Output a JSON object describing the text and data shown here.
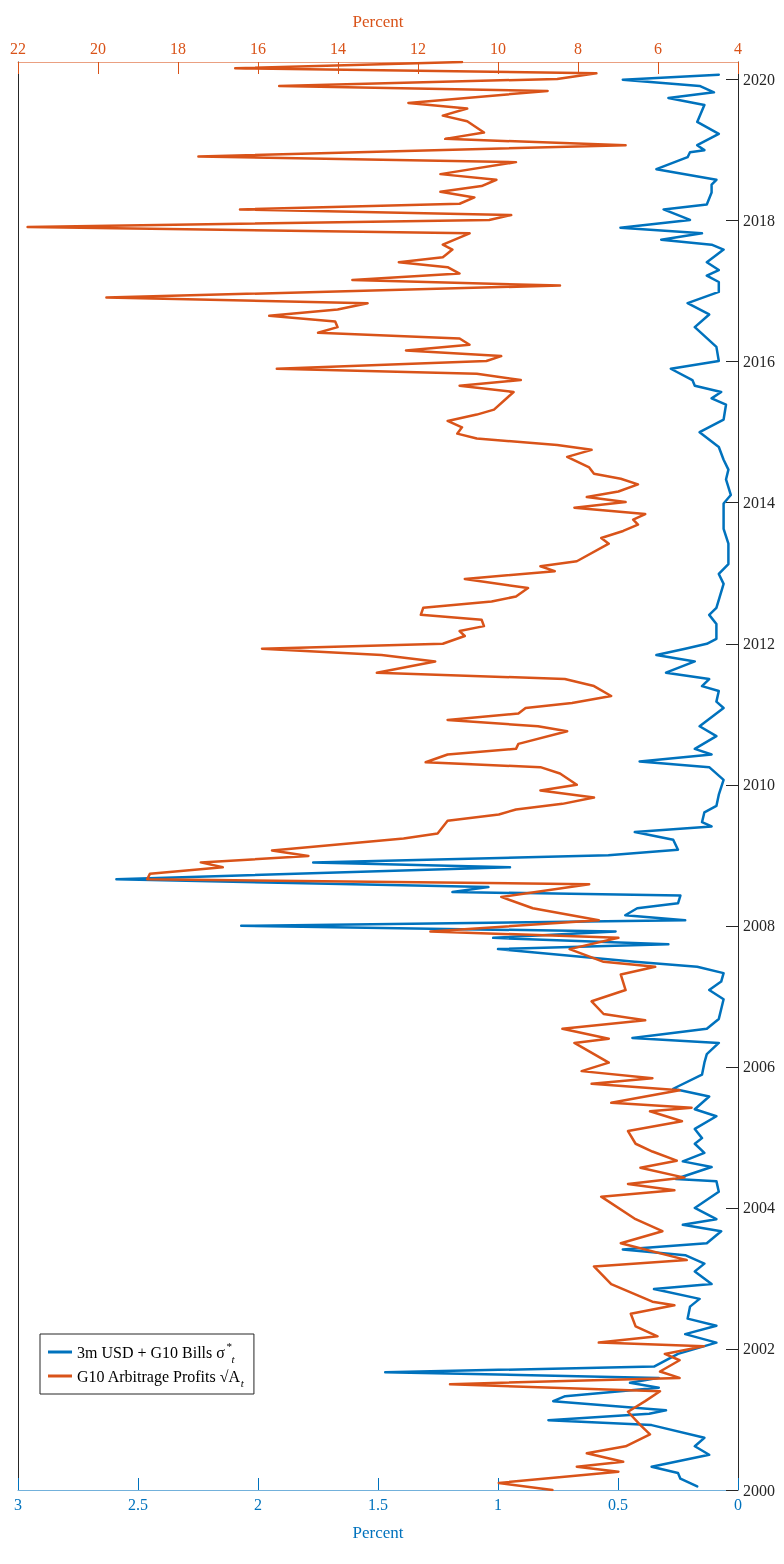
{
  "chart_data": {
    "type": "line",
    "xlabel": "Percent",
    "x2label": "Percent",
    "ylim": [
      2000,
      2020.25
    ],
    "yticks": [
      2000,
      2002,
      2004,
      2006,
      2008,
      2010,
      2012,
      2014,
      2016,
      2018,
      2020
    ],
    "xlim": [
      3,
      0
    ],
    "xticks": [
      3,
      2.5,
      2,
      1.5,
      1,
      0.5,
      0
    ],
    "x2lim": [
      22,
      4
    ],
    "x2ticks": [
      22,
      20,
      18,
      16,
      14,
      12,
      10,
      8,
      6,
      4
    ],
    "grid": false,
    "legend": "bottom left",
    "marker": "none",
    "line_style": "solid",
    "series": [
      {
        "name": "3m USD + G10 Bills σ$^{*}$$_{t}$",
        "color": "#0072bd",
        "values": [
          2000.05,
          2000.16,
          2000.24,
          2000.33,
          2000.5,
          2000.62,
          2000.74,
          2000.92,
          2000.99,
          2001.08,
          2001.13,
          2001.26,
          2001.33,
          2001.45,
          2001.52,
          2001.59,
          2001.67,
          2001.75,
          2001.93,
          2002.09,
          2002.21,
          2002.33,
          2002.43,
          2002.6,
          2002.71,
          2002.85,
          2002.92,
          2003.1,
          2003.21,
          2003.33,
          2003.41,
          2003.5,
          2003.67,
          2003.76,
          2003.84,
          2004.0,
          2004.23,
          2004.38,
          2004.41,
          2004.58,
          2004.66,
          2004.78,
          2004.91,
          2004.99,
          2005.12,
          2005.3,
          2005.4,
          2005.58,
          2005.69,
          2005.89,
          2006.06,
          2006.18,
          2006.34,
          2006.41,
          2006.54,
          2006.68,
          2006.96,
          2007.09,
          2007.21,
          2007.33,
          2007.42,
          2007.49,
          2007.67,
          2007.74,
          2007.83,
          2007.92,
          2008.0,
          2008.08,
          2008.15,
          2008.25,
          2008.32,
          2008.43,
          2008.48,
          2008.55,
          2008.66,
          2008.83,
          2008.9,
          2009.0,
          2009.08,
          2009.22,
          2009.33,
          2009.41,
          2009.47,
          2009.61,
          2009.7,
          2009.86,
          2010.07,
          2010.25,
          2010.33,
          2010.43,
          2010.51,
          2010.69,
          2010.83,
          2011.09,
          2011.18,
          2011.33,
          2011.4,
          2011.5,
          2011.59,
          2011.75,
          2011.84,
          2011.93,
          2012.0,
          2012.07,
          2012.28,
          2012.41,
          2012.51,
          2012.85,
          2012.99,
          2013.13,
          2013.42,
          2013.63,
          2013.84,
          2013.99,
          2014.11,
          2014.33,
          2014.47,
          2014.61,
          2014.79,
          2015.0,
          2015.18,
          2015.39,
          2015.48,
          2015.57,
          2015.66,
          2015.74,
          2015.9,
          2016.01,
          2016.21,
          2016.49,
          2016.67,
          2016.83,
          2016.99,
          2017.13,
          2017.22,
          2017.3,
          2017.41,
          2017.59,
          2017.66,
          2017.73,
          2017.82,
          2017.9,
          2018.01,
          2018.16,
          2018.23,
          2018.4,
          2018.51,
          2018.58,
          2018.73,
          2018.9,
          2018.97,
          2019.0,
          2019.07,
          2019.23,
          2019.4,
          2019.64,
          2019.74,
          2019.82,
          2019.91,
          2020.0,
          2020.07
        ],
        "x": [
          0.17,
          0.24,
          0.25,
          0.36,
          0.12,
          0.18,
          0.14,
          0.36,
          0.79,
          0.37,
          0.3,
          0.77,
          0.72,
          0.33,
          0.45,
          0.33,
          1.47,
          0.35,
          0.25,
          0.09,
          0.22,
          0.09,
          0.21,
          0.2,
          0.16,
          0.35,
          0.11,
          0.18,
          0.14,
          0.22,
          0.48,
          0.13,
          0.07,
          0.23,
          0.09,
          0.18,
          0.08,
          0.09,
          0.26,
          0.11,
          0.23,
          0.14,
          0.18,
          0.15,
          0.18,
          0.09,
          0.18,
          0.12,
          0.27,
          0.15,
          0.14,
          0.13,
          0.08,
          0.44,
          0.13,
          0.08,
          0.06,
          0.12,
          0.07,
          0.06,
          0.17,
          0.43,
          1.0,
          0.29,
          1.02,
          0.51,
          2.07,
          0.22,
          0.47,
          0.42,
          0.25,
          0.24,
          1.19,
          1.04,
          2.59,
          0.95,
          1.77,
          0.54,
          0.25,
          0.27,
          0.43,
          0.11,
          0.15,
          0.14,
          0.09,
          0.08,
          0.06,
          0.12,
          0.41,
          0.11,
          0.18,
          0.09,
          0.16,
          0.06,
          0.09,
          0.08,
          0.15,
          0.12,
          0.3,
          0.18,
          0.34,
          0.22,
          0.13,
          0.09,
          0.09,
          0.12,
          0.09,
          0.06,
          0.08,
          0.04,
          0.04,
          0.06,
          0.06,
          0.06,
          0.03,
          0.05,
          0.04,
          0.06,
          0.08,
          0.16,
          0.06,
          0.05,
          0.11,
          0.07,
          0.18,
          0.19,
          0.28,
          0.08,
          0.09,
          0.18,
          0.12,
          0.21,
          0.08,
          0.08,
          0.13,
          0.08,
          0.13,
          0.06,
          0.11,
          0.32,
          0.15,
          0.49,
          0.2,
          0.31,
          0.13,
          0.11,
          0.11,
          0.09,
          0.34,
          0.21,
          0.2,
          0.14,
          0.17,
          0.08,
          0.17,
          0.14,
          0.29,
          0.1,
          0.16,
          0.48,
          0.08
        ]
      },
      {
        "name": "G10 Arbitrage Profits √A$_{t}$",
        "color": "#d95319",
        "axis": "x2",
        "values": [
          2000.0,
          2000.1,
          2000.26,
          2000.33,
          2000.4,
          2000.52,
          2000.62,
          2000.79,
          2000.92,
          2001.11,
          2001.26,
          2001.4,
          2001.5,
          2001.59,
          2001.68,
          2001.84,
          2001.93,
          2002.04,
          2002.09,
          2002.18,
          2002.32,
          2002.5,
          2002.62,
          2002.67,
          2002.92,
          2003.17,
          2003.26,
          2003.5,
          2003.67,
          2003.84,
          2004.16,
          2004.25,
          2004.34,
          2004.43,
          2004.57,
          2004.67,
          2004.8,
          2004.91,
          2005.09,
          2005.23,
          2005.37,
          2005.42,
          2005.49,
          2005.67,
          2005.76,
          2005.84,
          2005.94,
          2006.06,
          2006.34,
          2006.4,
          2006.54,
          2006.66,
          2006.75,
          2006.93,
          2007.09,
          2007.31,
          2007.42,
          2007.49,
          2007.67,
          2007.83,
          2007.92,
          2008.08,
          2008.25,
          2008.41,
          2008.59,
          2008.66,
          2008.74,
          2008.83,
          2008.9,
          2008.99,
          2009.07,
          2009.24,
          2009.31,
          2009.49,
          2009.58,
          2009.65,
          2009.73,
          2009.82,
          2009.92,
          2010.0,
          2010.16,
          2010.25,
          2010.32,
          2010.43,
          2010.51,
          2010.58,
          2010.76,
          2010.83,
          2010.92,
          2011.01,
          2011.09,
          2011.16,
          2011.26,
          2011.4,
          2011.5,
          2011.59,
          2011.75,
          2011.84,
          2011.93,
          2012.0,
          2012.11,
          2012.18,
          2012.25,
          2012.34,
          2012.41,
          2012.51,
          2012.6,
          2012.67,
          2012.79,
          2012.92,
          2013.03,
          2013.1,
          2013.17,
          2013.42,
          2013.5,
          2013.6,
          2013.69,
          2013.76,
          2013.84,
          2013.93,
          2014.01,
          2014.08,
          2014.16,
          2014.26,
          2014.34,
          2014.41,
          2014.5,
          2014.65,
          2014.75,
          2014.82,
          2014.91,
          2014.98,
          2015.07,
          2015.16,
          2015.25,
          2015.32,
          2015.57,
          2015.66,
          2015.74,
          2015.83,
          2015.9,
          2016.01,
          2016.08,
          2016.16,
          2016.24,
          2016.33,
          2016.41,
          2016.49,
          2016.57,
          2016.65,
          2016.74,
          2016.83,
          2016.91,
          2017.08,
          2017.16,
          2017.25,
          2017.34,
          2017.41,
          2017.48,
          2017.59,
          2017.66,
          2017.82,
          2017.91,
          2018.01,
          2018.08,
          2018.16,
          2018.24,
          2018.33,
          2018.41,
          2018.49,
          2018.58,
          2018.66,
          2018.83,
          2018.91,
          2019.07,
          2019.16,
          2019.25,
          2019.41,
          2019.49,
          2019.59,
          2019.67,
          2019.84,
          2019.91,
          2020.01,
          2020.09,
          2020.16,
          2020.25
        ],
        "x": [
          8.64,
          9.98,
          6.99,
          8.03,
          6.87,
          7.78,
          6.81,
          6.2,
          6.44,
          6.75,
          6.32,
          5.95,
          11.2,
          5.46,
          5.95,
          5.46,
          5.83,
          4.85,
          7.48,
          6.01,
          6.56,
          6.68,
          5.59,
          6.14,
          7.17,
          7.6,
          5.28,
          6.93,
          5.89,
          6.56,
          7.42,
          5.59,
          6.75,
          5.34,
          6.44,
          5.53,
          6.14,
          6.56,
          6.75,
          5.4,
          6.2,
          5.16,
          7.17,
          5.46,
          7.66,
          6.14,
          7.91,
          7.23,
          8.09,
          7.23,
          8.39,
          6.32,
          7.36,
          7.66,
          6.81,
          6.93,
          6.07,
          7.36,
          8.21,
          6.99,
          11.69,
          7.48,
          9.13,
          9.92,
          7.72,
          18.77,
          18.7,
          16.88,
          17.43,
          14.74,
          15.65,
          12.36,
          11.51,
          11.26,
          9.98,
          9.55,
          8.39,
          7.6,
          8.94,
          8.03,
          8.45,
          8.94,
          11.81,
          11.26,
          9.55,
          9.49,
          8.27,
          9.0,
          11.26,
          9.49,
          9.31,
          8.15,
          7.17,
          7.6,
          8.33,
          13.03,
          11.57,
          12.91,
          15.9,
          11.38,
          10.83,
          10.96,
          10.35,
          10.41,
          11.93,
          11.87,
          10.16,
          9.55,
          9.25,
          10.83,
          8.58,
          8.94,
          8.03,
          7.23,
          7.42,
          6.87,
          6.5,
          6.62,
          6.32,
          8.09,
          6.81,
          7.78,
          6.99,
          6.5,
          6.93,
          7.6,
          7.72,
          8.27,
          7.66,
          8.52,
          10.53,
          11.02,
          10.9,
          11.26,
          10.53,
          10.1,
          9.61,
          10.96,
          9.43,
          10.53,
          15.53,
          10.29,
          9.92,
          12.3,
          10.71,
          10.96,
          14.5,
          14.01,
          14.07,
          15.72,
          14.01,
          13.26,
          19.79,
          8.45,
          13.64,
          10.96,
          11.26,
          12.48,
          11.38,
          11.14,
          11.38,
          10.71,
          21.76,
          10.22,
          9.67,
          16.45,
          10.96,
          10.59,
          11.44,
          10.41,
          10.04,
          11.44,
          9.55,
          17.49,
          6.81,
          11.32,
          10.35,
          10.77,
          11.38,
          10.77,
          12.24,
          8.76,
          15.47,
          8.52,
          7.54,
          16.57,
          10.9
        ]
      }
    ]
  }
}
